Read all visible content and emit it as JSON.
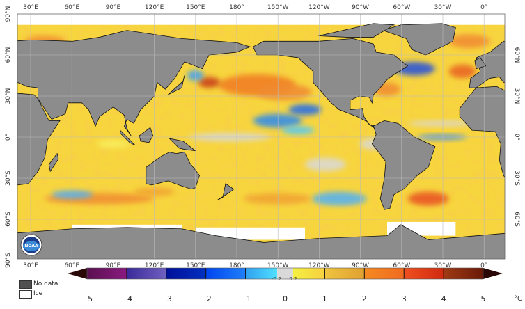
{
  "map": {
    "lon_labels": [
      "30°E",
      "60°E",
      "90°E",
      "120°E",
      "150°E",
      "180°",
      "150°W",
      "120°W",
      "90°W",
      "60°W",
      "30°W",
      "0°"
    ],
    "lat_labels_left": [
      "90°N",
      "60°N",
      "30°N",
      "0°",
      "30°S",
      "60°S",
      "90°S"
    ],
    "lat_labels_right": [
      "60°N",
      "30°N",
      "0°",
      "30°S",
      "60°S"
    ],
    "colors": {
      "land": "#8c8c8c",
      "ice": "#ffffff",
      "neutral": "#d9d9d9",
      "base_ocean": "#f7d53e"
    },
    "logo_text": "NOAA"
  },
  "legend": {
    "no_data": "No data",
    "ice": "Ice",
    "no_data_color": "#505050",
    "ice_color": "#ffffff"
  },
  "colorbar": {
    "unit": "°C",
    "ticks": [
      "−5",
      "−4",
      "−3",
      "−2",
      "−1",
      "0",
      "1",
      "2",
      "3",
      "4",
      "5"
    ],
    "small_ticks": [
      "-0.2",
      "0.2"
    ],
    "range": [
      -5,
      5
    ],
    "bins": [
      {
        "from": -5,
        "to": -4,
        "c1": "#5a1050",
        "c2": "#8a1a80"
      },
      {
        "from": -4,
        "to": -3,
        "c1": "#3a2a9a",
        "c2": "#7060c0"
      },
      {
        "from": -3,
        "to": -2,
        "c1": "#00109a",
        "c2": "#0030c0"
      },
      {
        "from": -2,
        "to": -1,
        "c1": "#0044f0",
        "c2": "#2080f8"
      },
      {
        "from": -1,
        "to": -0.2,
        "c1": "#30a0f0",
        "c2": "#50e0ff"
      },
      {
        "from": -0.2,
        "to": 0.2,
        "c1": "#d9d9d9",
        "c2": "#d9d9d9"
      },
      {
        "from": 0.2,
        "to": 1,
        "c1": "#f4f040",
        "c2": "#f8d040"
      },
      {
        "from": 1,
        "to": 2,
        "c1": "#f0c440",
        "c2": "#e0a030"
      },
      {
        "from": 2,
        "to": 3,
        "c1": "#f58a20",
        "c2": "#f06a20"
      },
      {
        "from": 3,
        "to": 4,
        "c1": "#f05020",
        "c2": "#d02a10"
      },
      {
        "from": 4,
        "to": 5,
        "c1": "#a03a14",
        "c2": "#6a1a08"
      }
    ],
    "under_color": "#2a0808",
    "over_color": "#2a0808"
  }
}
